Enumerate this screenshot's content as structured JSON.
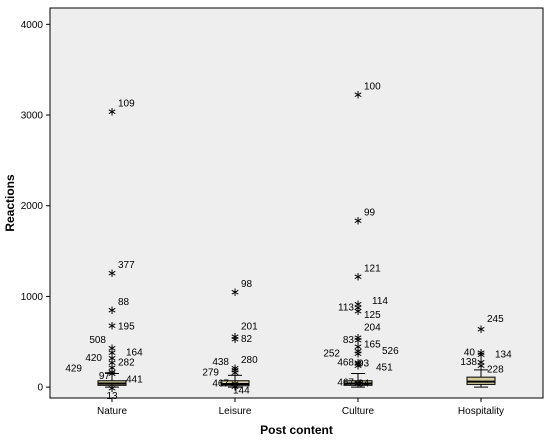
{
  "chart_data": {
    "type": "boxplot",
    "xlabel": "Post content",
    "ylabel": "Reactions",
    "ylim": [
      -120,
      4180
    ],
    "yticks": [
      0,
      1000,
      2000,
      3000,
      4000
    ],
    "categories": [
      "Nature",
      "Leisure",
      "Culture",
      "Hospitality"
    ],
    "boxes": [
      {
        "category": "Nature",
        "whisker_low": 0,
        "q1": 20,
        "median": 40,
        "q3": 70,
        "whisker_high": 150
      },
      {
        "category": "Leisure",
        "whisker_low": 0,
        "q1": 15,
        "median": 35,
        "q3": 70,
        "whisker_high": 130
      },
      {
        "category": "Culture",
        "whisker_low": 0,
        "q1": 20,
        "median": 40,
        "q3": 70,
        "whisker_high": 150
      },
      {
        "category": "Hospitality",
        "whisker_low": 0,
        "q1": 30,
        "median": 60,
        "q3": 110,
        "whisker_high": 190
      }
    ],
    "outliers": [
      {
        "category": "Nature",
        "id": "109",
        "value": 3050
      },
      {
        "category": "Nature",
        "id": "377",
        "value": 1270
      },
      {
        "category": "Nature",
        "id": "88",
        "value": 860
      },
      {
        "category": "Nature",
        "id": "195",
        "value": 690
      },
      {
        "category": "Nature",
        "id": "508",
        "value": 440
      },
      {
        "category": "Nature",
        "id": "164",
        "value": 390
      },
      {
        "category": "Nature",
        "id": "420",
        "value": 330
      },
      {
        "category": "Nature",
        "id": "282",
        "value": 280
      },
      {
        "category": "Nature",
        "id": "429",
        "value": 230
      },
      {
        "category": "Nature",
        "id": "97",
        "value": 180
      },
      {
        "category": "Nature",
        "id": "441",
        "value": 160
      },
      {
        "category": "Nature",
        "id": "13",
        "value": 0
      },
      {
        "category": "Leisure",
        "id": "98",
        "value": 1060
      },
      {
        "category": "Leisure",
        "id": "201",
        "value": 570
      },
      {
        "category": "Leisure",
        "id": "82",
        "value": 540
      },
      {
        "category": "Leisure",
        "id": "280",
        "value": 220
      },
      {
        "category": "Leisure",
        "id": "438",
        "value": 200
      },
      {
        "category": "Leisure",
        "id": "279",
        "value": 170
      },
      {
        "category": "Leisure",
        "id": "467",
        "value": 50
      },
      {
        "category": "Leisure",
        "id": "144",
        "value": 20
      },
      {
        "category": "Culture",
        "id": "100",
        "value": 3240
      },
      {
        "category": "Culture",
        "id": "99",
        "value": 1850
      },
      {
        "category": "Culture",
        "id": "121",
        "value": 1230
      },
      {
        "category": "Culture",
        "id": "114",
        "value": 930
      },
      {
        "category": "Culture",
        "id": "113",
        "value": 890
      },
      {
        "category": "Culture",
        "id": "125",
        "value": 850
      },
      {
        "category": "Culture",
        "id": "204",
        "value": 560
      },
      {
        "category": "Culture",
        "id": "83",
        "value": 530
      },
      {
        "category": "Culture",
        "id": "165",
        "value": 460
      },
      {
        "category": "Culture",
        "id": "526",
        "value": 410
      },
      {
        "category": "Culture",
        "id": "252",
        "value": 380
      },
      {
        "category": "Culture",
        "id": "468",
        "value": 280
      },
      {
        "category": "Culture",
        "id": "93",
        "value": 270
      },
      {
        "category": "Culture",
        "id": "451",
        "value": 250
      },
      {
        "category": "Culture",
        "id": "467",
        "value": 60
      },
      {
        "category": "Culture",
        "id": "34",
        "value": 50
      },
      {
        "category": "Hospitality",
        "id": "245",
        "value": 650
      },
      {
        "category": "Hospitality",
        "id": "40",
        "value": 390
      },
      {
        "category": "Hospitality",
        "id": "134",
        "value": 370
      },
      {
        "category": "Hospitality",
        "id": "138",
        "value": 290
      },
      {
        "category": "Hospitality",
        "id": "228",
        "value": 250
      }
    ],
    "colors": {
      "plot_background": "#eeeeee",
      "box_fill": "#d8cfa0",
      "frame": "#000000"
    },
    "grid": false
  }
}
